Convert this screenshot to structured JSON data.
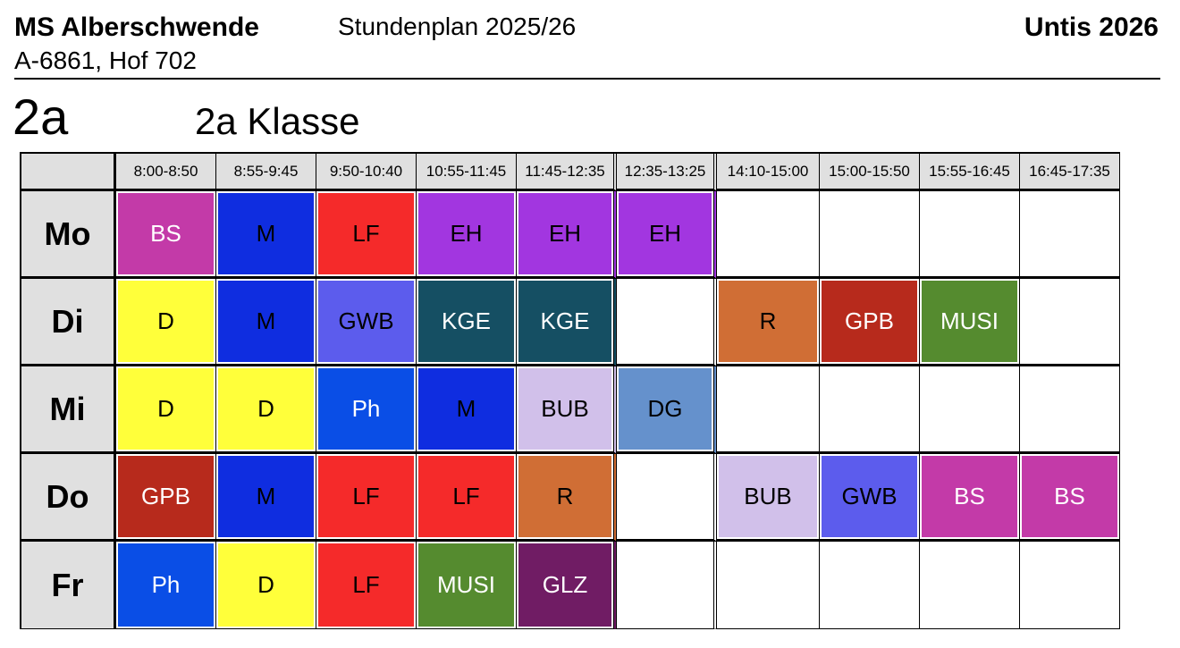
{
  "header": {
    "school": "MS Alberschwende",
    "address": "A-6861, Hof 702",
    "plan_title": "Stundenplan 2025/26",
    "software": "Untis 2026"
  },
  "class": {
    "code": "2a",
    "name": "2a Klasse"
  },
  "periods": [
    "8:00-8:50",
    "8:55-9:45",
    "9:50-10:40",
    "10:55-11:45",
    "11:45-12:35",
    "12:35-13:25",
    "14:10-15:00",
    "15:00-15:50",
    "15:55-16:45",
    "16:45-17:35"
  ],
  "days": [
    {
      "name": "Mo",
      "lessons": [
        {
          "s": "BS",
          "bg": "#c33aa8",
          "fg": "#ffffff"
        },
        {
          "s": "M",
          "bg": "#0f2de0",
          "fg": "#000000"
        },
        {
          "s": "LF",
          "bg": "#f52a2a",
          "fg": "#000000"
        },
        {
          "s": "EH",
          "bg": "#a236e0",
          "fg": "#000000"
        },
        {
          "s": "EH",
          "bg": "#a236e0",
          "fg": "#000000"
        },
        {
          "s": "EH",
          "bg": "#a236e0",
          "fg": "#000000"
        },
        {
          "s": "",
          "bg": "#ffffff",
          "fg": "#000000"
        },
        {
          "s": "",
          "bg": "#ffffff",
          "fg": "#000000"
        },
        {
          "s": "",
          "bg": "#ffffff",
          "fg": "#000000"
        },
        {
          "s": "",
          "bg": "#ffffff",
          "fg": "#000000"
        }
      ]
    },
    {
      "name": "Di",
      "lessons": [
        {
          "s": "D",
          "bg": "#ffff3a",
          "fg": "#000000"
        },
        {
          "s": "M",
          "bg": "#0f2de0",
          "fg": "#000000"
        },
        {
          "s": "GWB",
          "bg": "#5c5ced",
          "fg": "#000000"
        },
        {
          "s": "KGE",
          "bg": "#154f63",
          "fg": "#ffffff"
        },
        {
          "s": "KGE",
          "bg": "#154f63",
          "fg": "#ffffff"
        },
        {
          "s": "",
          "bg": "#ffffff",
          "fg": "#000000"
        },
        {
          "s": "R",
          "bg": "#d06e35",
          "fg": "#000000"
        },
        {
          "s": "GPB",
          "bg": "#b72a1c",
          "fg": "#ffffff"
        },
        {
          "s": "MUSI",
          "bg": "#558b2f",
          "fg": "#ffffff"
        },
        {
          "s": "",
          "bg": "#ffffff",
          "fg": "#000000"
        }
      ]
    },
    {
      "name": "Mi",
      "lessons": [
        {
          "s": "D",
          "bg": "#ffff3a",
          "fg": "#000000"
        },
        {
          "s": "D",
          "bg": "#ffff3a",
          "fg": "#000000"
        },
        {
          "s": "Ph",
          "bg": "#0a4ee6",
          "fg": "#ffffff"
        },
        {
          "s": "M",
          "bg": "#0f2de0",
          "fg": "#000000"
        },
        {
          "s": "BUB",
          "bg": "#d1c0ea",
          "fg": "#000000"
        },
        {
          "s": "DG",
          "bg": "#6591cc",
          "fg": "#000000"
        },
        {
          "s": "",
          "bg": "#ffffff",
          "fg": "#000000"
        },
        {
          "s": "",
          "bg": "#ffffff",
          "fg": "#000000"
        },
        {
          "s": "",
          "bg": "#ffffff",
          "fg": "#000000"
        },
        {
          "s": "",
          "bg": "#ffffff",
          "fg": "#000000"
        }
      ]
    },
    {
      "name": "Do",
      "lessons": [
        {
          "s": "GPB",
          "bg": "#b72a1c",
          "fg": "#ffffff"
        },
        {
          "s": "M",
          "bg": "#0f2de0",
          "fg": "#000000"
        },
        {
          "s": "LF",
          "bg": "#f52a2a",
          "fg": "#000000"
        },
        {
          "s": "LF",
          "bg": "#f52a2a",
          "fg": "#000000"
        },
        {
          "s": "R",
          "bg": "#d06e35",
          "fg": "#000000"
        },
        {
          "s": "",
          "bg": "#ffffff",
          "fg": "#000000"
        },
        {
          "s": "BUB",
          "bg": "#d1c0ea",
          "fg": "#000000"
        },
        {
          "s": "GWB",
          "bg": "#5c5ced",
          "fg": "#000000"
        },
        {
          "s": "BS",
          "bg": "#c33aa8",
          "fg": "#ffffff"
        },
        {
          "s": "BS",
          "bg": "#c33aa8",
          "fg": "#ffffff"
        }
      ]
    },
    {
      "name": "Fr",
      "lessons": [
        {
          "s": "Ph",
          "bg": "#0a4ee6",
          "fg": "#ffffff"
        },
        {
          "s": "D",
          "bg": "#ffff3a",
          "fg": "#000000"
        },
        {
          "s": "LF",
          "bg": "#f52a2a",
          "fg": "#000000"
        },
        {
          "s": "MUSI",
          "bg": "#558b2f",
          "fg": "#ffffff"
        },
        {
          "s": "GLZ",
          "bg": "#701c64",
          "fg": "#ffffff"
        },
        {
          "s": "",
          "bg": "#ffffff",
          "fg": "#000000"
        },
        {
          "s": "",
          "bg": "#ffffff",
          "fg": "#000000"
        },
        {
          "s": "",
          "bg": "#ffffff",
          "fg": "#000000"
        },
        {
          "s": "",
          "bg": "#ffffff",
          "fg": "#000000"
        },
        {
          "s": "",
          "bg": "#ffffff",
          "fg": "#000000"
        }
      ]
    }
  ]
}
